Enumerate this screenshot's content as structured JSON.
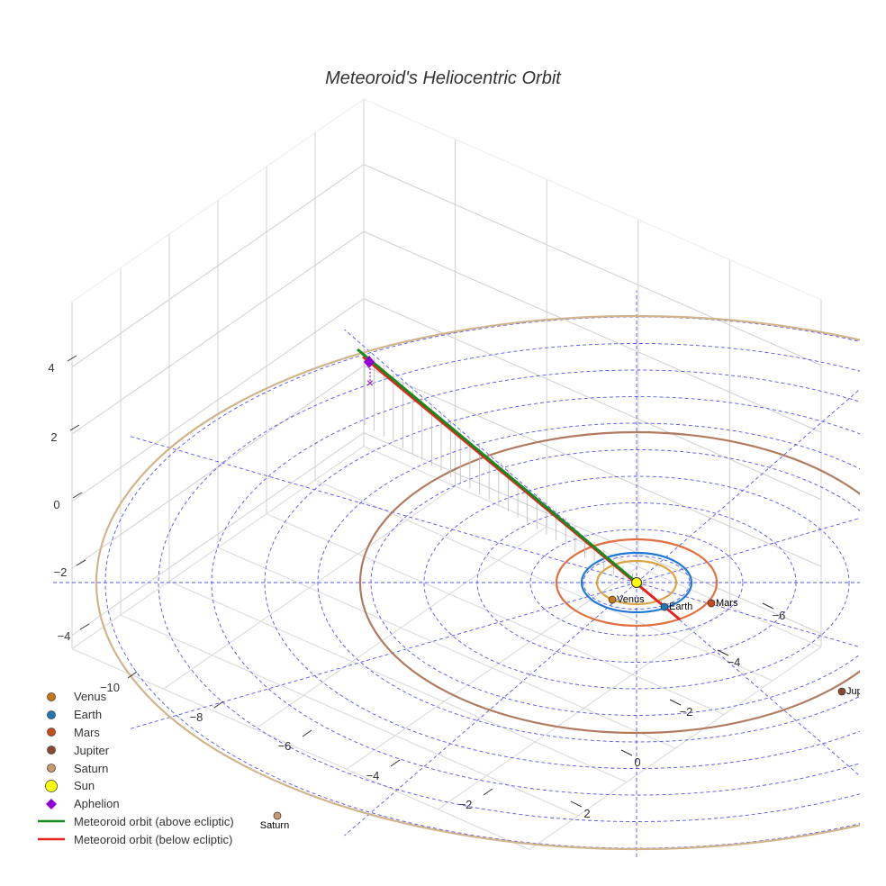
{
  "chart_data": {
    "type": "scatter3d",
    "title": "Meteoroid's Heliocentric Orbit",
    "axes": {
      "x": {
        "ticks": [
          "−10",
          "−8",
          "−6",
          "−4",
          "−2"
        ]
      },
      "y": {
        "ticks": [
          "2",
          "0",
          "−2",
          "−4",
          "−6"
        ]
      },
      "z": {
        "ticks": [
          "4",
          "2",
          "0",
          "−2",
          "−4"
        ]
      }
    },
    "planets": [
      {
        "name": "Venus",
        "label": "Venus",
        "orbit_au": 0.72,
        "color": "#c8780f",
        "orbit_color": "#d9a441"
      },
      {
        "name": "Earth",
        "label": "Earth",
        "orbit_au": 1.0,
        "color": "#1f77b4",
        "orbit_color": "#1f78d6"
      },
      {
        "name": "Mars",
        "label": "Mars",
        "orbit_au": 1.52,
        "color": "#cc4a1a",
        "orbit_color": "#e07040"
      },
      {
        "name": "Jupiter",
        "label": "Jupit",
        "orbit_au": 5.2,
        "color": "#8b4a2b",
        "orbit_color": "#b07b5f"
      },
      {
        "name": "Saturn",
        "label": "Saturn",
        "orbit_au": 9.54,
        "color": "#c89a6e",
        "orbit_color": "#d2b48c"
      }
    ],
    "sun": {
      "name": "Sun",
      "color": "#ffff00"
    },
    "aphelion": {
      "name": "Aphelion",
      "color": "#9400d3"
    },
    "meteoroid": {
      "above": {
        "name": "Meteoroid orbit (above ecliptic)",
        "color": "#1a8a1a"
      },
      "below": {
        "name": "Meteoroid orbit (below ecliptic)",
        "color": "#e8231e"
      }
    },
    "grid_rings_au": [
      1,
      2,
      3,
      4,
      5,
      6,
      7,
      8,
      9,
      10
    ],
    "legend_position": "bottom-left"
  },
  "legend": [
    {
      "label": "Venus",
      "kind": "dot",
      "color": "#c8780f"
    },
    {
      "label": "Earth",
      "kind": "dot",
      "color": "#1f77b4"
    },
    {
      "label": "Mars",
      "kind": "dot",
      "color": "#cc4a1a"
    },
    {
      "label": "Jupiter",
      "kind": "dot",
      "color": "#8b4a2b"
    },
    {
      "label": "Saturn",
      "kind": "dot",
      "color": "#c89a6e"
    },
    {
      "label": "Sun",
      "kind": "sun",
      "color": "#ffff00"
    },
    {
      "label": "Aphelion",
      "kind": "diamond",
      "color": "#9400d3"
    },
    {
      "label": "Meteoroid orbit (above ecliptic)",
      "kind": "line",
      "color": "#1a8a1a"
    },
    {
      "label": "Meteoroid orbit (below ecliptic)",
      "kind": "line",
      "color": "#e8231e"
    }
  ]
}
